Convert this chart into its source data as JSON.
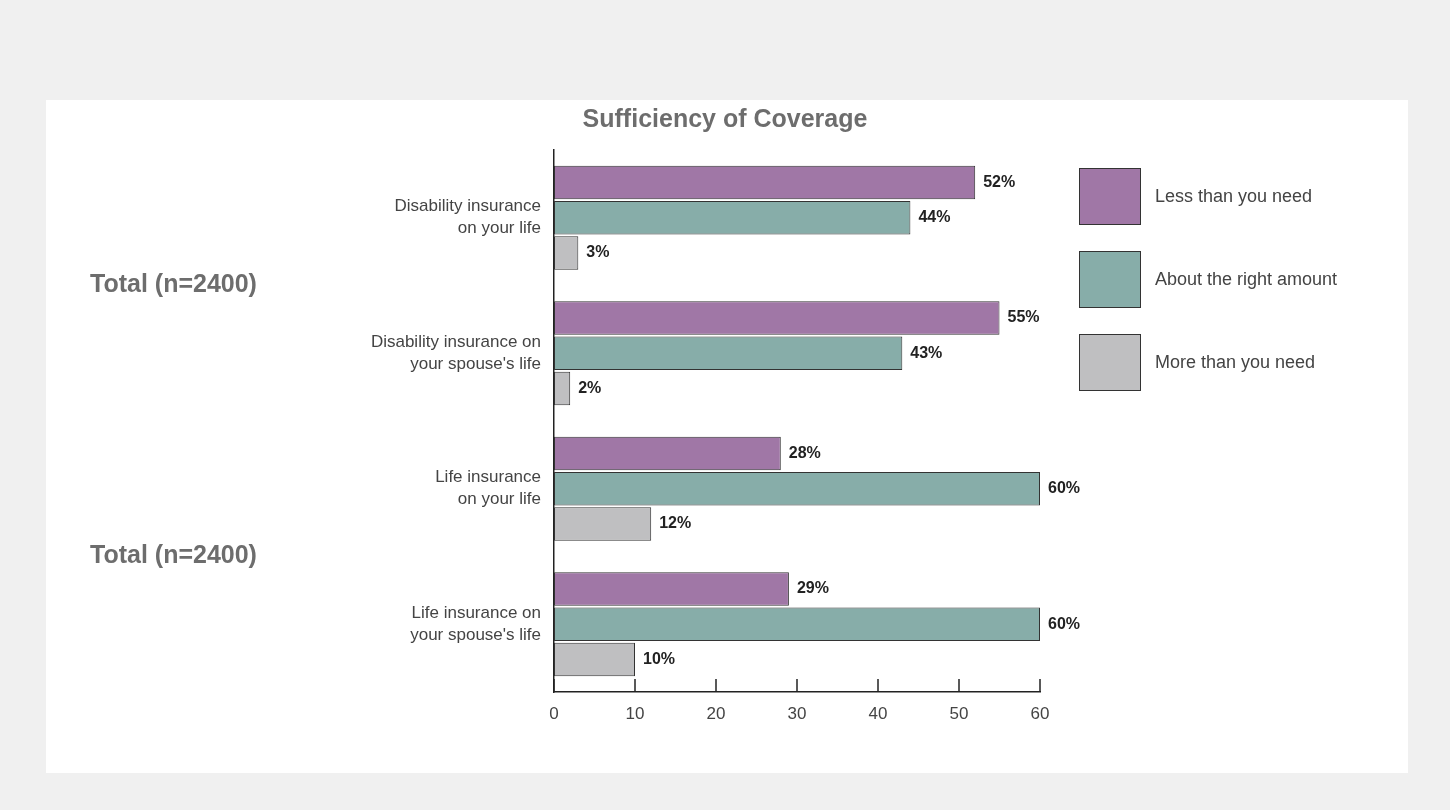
{
  "chart_data": {
    "type": "bar",
    "orientation": "horizontal",
    "title": "Sufficiency of Coverage",
    "categories": [
      "Disability insurance\non your life",
      "Disability insurance on\nyour spouse's life",
      "Life insurance\non your life",
      "Life insurance on\nyour spouse's life"
    ],
    "series": [
      {
        "name": "Less than you need",
        "color": "#a077a6",
        "values": [
          52,
          55,
          28,
          29
        ],
        "value_labels": [
          "52%",
          "55%",
          "28%",
          "29%"
        ]
      },
      {
        "name": "About the right amount",
        "color": "#87ada9",
        "values": [
          44,
          43,
          60,
          60
        ],
        "value_labels": [
          "44%",
          "43%",
          "60%",
          "60%"
        ]
      },
      {
        "name": "More than you need",
        "color": "#bfbfc1",
        "values": [
          3,
          2,
          12,
          10
        ],
        "value_labels": [
          "3%",
          "2%",
          "12%",
          "10%"
        ]
      }
    ],
    "xlim": [
      0,
      60
    ],
    "xticks": [
      0,
      10,
      20,
      30,
      40,
      50,
      60
    ],
    "grid": false,
    "legend": "top right",
    "annotations": [
      "Total (n=2400)",
      "Total (n=2400)"
    ]
  }
}
